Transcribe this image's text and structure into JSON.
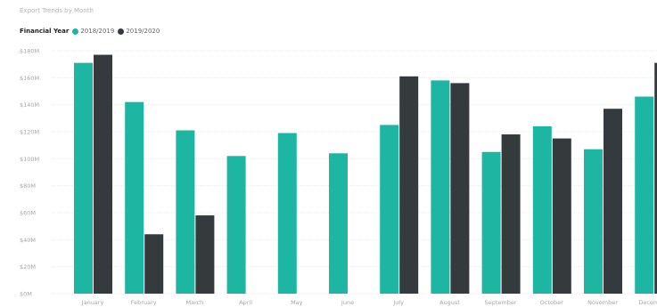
{
  "header": {
    "title": "Export Trends by Month"
  },
  "legend": {
    "title": "Financial Year"
  },
  "chart_data": {
    "type": "bar",
    "title": "Export Trends by Month",
    "legend_title": "Financial Year",
    "categories": [
      "January",
      "February",
      "March",
      "April",
      "May",
      "June",
      "July",
      "August",
      "September",
      "October",
      "November",
      "December"
    ],
    "series": [
      {
        "name": "2018/2019",
        "color": "#1db6a3",
        "values": [
          171,
          142,
          121,
          102,
          119,
          104,
          125,
          158,
          105,
          124,
          107,
          146
        ]
      },
      {
        "name": "2019/2020",
        "color": "#353a3d",
        "values": [
          177,
          44,
          58,
          null,
          null,
          null,
          161,
          156,
          118,
          115,
          137,
          171
        ]
      }
    ],
    "yticks": [
      "$0M",
      "$20M",
      "$40M",
      "$60M",
      "$80M",
      "$100M",
      "$120M",
      "$140M",
      "$160M",
      "$180M"
    ],
    "ylim": [
      0,
      180
    ],
    "grid": true,
    "legend_position": "top-left"
  }
}
